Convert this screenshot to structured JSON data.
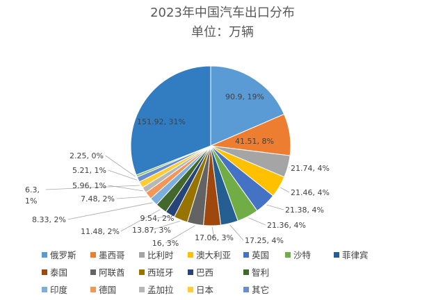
{
  "chart_data": {
    "type": "pie",
    "title": "2023年中国汽车出口分布",
    "subtitle": "单位：万辆",
    "slices": [
      {
        "name": "俄罗斯",
        "value": 90.9,
        "percent": "19%",
        "color": "#5B9BD5"
      },
      {
        "name": "墨西哥",
        "value": 41.51,
        "percent": "8%",
        "color": "#ED7D31"
      },
      {
        "name": "比利时",
        "value": 21.74,
        "percent": "4%",
        "color": "#A5A5A5"
      },
      {
        "name": "澳大利亚",
        "value": 21.46,
        "percent": "4%",
        "color": "#FFC000"
      },
      {
        "name": "英国",
        "value": 21.38,
        "percent": "4%",
        "color": "#4472C4"
      },
      {
        "name": "沙特",
        "value": 21.36,
        "percent": "4%",
        "color": "#70AD47"
      },
      {
        "name": "菲律宾",
        "value": 17.25,
        "percent": "4%",
        "color": "#255E91"
      },
      {
        "name": "泰国",
        "value": 17.06,
        "percent": "3%",
        "color": "#9E480E"
      },
      {
        "name": "阿联酋",
        "value": 16,
        "percent": "3%",
        "color": "#636363"
      },
      {
        "name": "西班牙",
        "value": 13.87,
        "percent": "3%",
        "color": "#997300"
      },
      {
        "name": "巴西",
        "value": 9.54,
        "percent": "2%",
        "color": "#264478"
      },
      {
        "name": "智利",
        "value": 11.48,
        "percent": "2%",
        "color": "#43682B"
      },
      {
        "name": "印度",
        "value": 8.33,
        "percent": "2%",
        "color": "#7CAFDD"
      },
      {
        "name": "德国",
        "value": 7.48,
        "percent": "2%",
        "color": "#F1975A"
      },
      {
        "name": "孟加拉",
        "value": 5.96,
        "percent": "1%",
        "color": "#B7B7B7"
      },
      {
        "name": "日本",
        "value": 6.3,
        "percent": "1%",
        "color": "#FFCD33"
      },
      {
        "name": "其它",
        "value": 5.21,
        "percent": "1%",
        "color": "#698ED0"
      },
      {
        "name": "",
        "value": 2.25,
        "percent": "0%",
        "color": "#8CC168"
      },
      {
        "name": "",
        "value": 151.92,
        "percent": "31%",
        "color": "#327DC2"
      }
    ],
    "legend": [
      "俄罗斯",
      "墨西哥",
      "比利时",
      "澳大利亚",
      "英国",
      "沙特",
      "菲律宾",
      "泰国",
      "阿联酋",
      "西班牙",
      "巴西",
      "智利",
      "印度",
      "德国",
      "孟加拉",
      "日本",
      "其它"
    ],
    "legend_placement": "bottom"
  }
}
